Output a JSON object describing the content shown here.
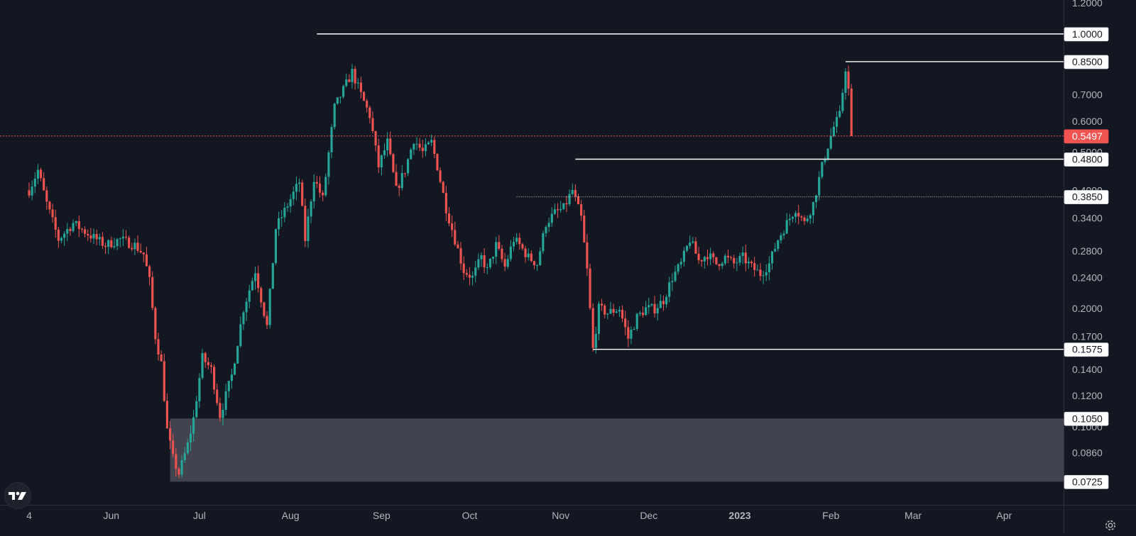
{
  "colors": {
    "background": "#131722",
    "bull": "#26a69a",
    "bear": "#ef5350",
    "level_line": "#ffffff",
    "current_price_line": "#f05350",
    "zone": "#434651",
    "axis_text": "#b2b5be"
  },
  "icons": {
    "logo": "tradingview-logo-icon",
    "settings": "gear-icon"
  },
  "chart_data": {
    "type": "candlestick",
    "title": "",
    "xlabel": "",
    "ylabel": "",
    "y_scale": "log",
    "ylim": [
      0.0645,
      1.21
    ],
    "y_ticks": [
      "1.2000",
      "0.7000",
      "0.6000",
      "0.5000",
      "0.4000",
      "0.3400",
      "0.2800",
      "0.2400",
      "0.2000",
      "0.1700",
      "0.1400",
      "0.1200",
      "0.1000",
      "0.0860"
    ],
    "x_ticks": [
      {
        "label": "4",
        "date": "2022-05-04"
      },
      {
        "label": "Jun",
        "date": "2022-06-01"
      },
      {
        "label": "Jul",
        "date": "2022-07-01"
      },
      {
        "label": "Aug",
        "date": "2022-08-01"
      },
      {
        "label": "Sep",
        "date": "2022-09-01"
      },
      {
        "label": "Oct",
        "date": "2022-10-01"
      },
      {
        "label": "Nov",
        "date": "2022-11-01"
      },
      {
        "label": "Dec",
        "date": "2022-12-01"
      },
      {
        "label": "2023",
        "date": "2023-01-01",
        "bold": true
      },
      {
        "label": "Feb",
        "date": "2023-02-01"
      },
      {
        "label": "Mar",
        "date": "2023-03-01"
      },
      {
        "label": "Apr",
        "date": "2023-04-01"
      }
    ],
    "price_path": [
      [
        "2022-05-04",
        0.4
      ],
      [
        "2022-05-07",
        0.45
      ],
      [
        "2022-05-10",
        0.37
      ],
      [
        "2022-05-14",
        0.3
      ],
      [
        "2022-05-19",
        0.33
      ],
      [
        "2022-05-24",
        0.31
      ],
      [
        "2022-05-30",
        0.29
      ],
      [
        "2022-06-04",
        0.3
      ],
      [
        "2022-06-09",
        0.29
      ],
      [
        "2022-06-12",
        0.275
      ],
      [
        "2022-06-14",
        0.235
      ],
      [
        "2022-06-16",
        0.17
      ],
      [
        "2022-06-18",
        0.145
      ],
      [
        "2022-06-20",
        0.098
      ],
      [
        "2022-06-22",
        0.083
      ],
      [
        "2022-06-24",
        0.076
      ],
      [
        "2022-06-27",
        0.09
      ],
      [
        "2022-06-29",
        0.105
      ],
      [
        "2022-07-02",
        0.15
      ],
      [
        "2022-07-05",
        0.14
      ],
      [
        "2022-07-08",
        0.107
      ],
      [
        "2022-07-12",
        0.135
      ],
      [
        "2022-07-16",
        0.2
      ],
      [
        "2022-07-20",
        0.25
      ],
      [
        "2022-07-24",
        0.18
      ],
      [
        "2022-07-27",
        0.32
      ],
      [
        "2022-08-01",
        0.38
      ],
      [
        "2022-08-04",
        0.42
      ],
      [
        "2022-08-06",
        0.3
      ],
      [
        "2022-08-09",
        0.43
      ],
      [
        "2022-08-12",
        0.38
      ],
      [
        "2022-08-16",
        0.65
      ],
      [
        "2022-08-19",
        0.72
      ],
      [
        "2022-08-22",
        0.8
      ],
      [
        "2022-08-25",
        0.7
      ],
      [
        "2022-08-28",
        0.62
      ],
      [
        "2022-08-31",
        0.46
      ],
      [
        "2022-09-03",
        0.53
      ],
      [
        "2022-09-06",
        0.4
      ],
      [
        "2022-09-09",
        0.45
      ],
      [
        "2022-09-12",
        0.54
      ],
      [
        "2022-09-15",
        0.5
      ],
      [
        "2022-09-18",
        0.53
      ],
      [
        "2022-09-20",
        0.46
      ],
      [
        "2022-09-23",
        0.36
      ],
      [
        "2022-09-26",
        0.3
      ],
      [
        "2022-09-29",
        0.25
      ],
      [
        "2022-10-02",
        0.24
      ],
      [
        "2022-10-05",
        0.27
      ],
      [
        "2022-10-07",
        0.25
      ],
      [
        "2022-10-10",
        0.29
      ],
      [
        "2022-10-13",
        0.255
      ],
      [
        "2022-10-16",
        0.3
      ],
      [
        "2022-10-18",
        0.29
      ],
      [
        "2022-10-21",
        0.27
      ],
      [
        "2022-10-24",
        0.26
      ],
      [
        "2022-10-27",
        0.33
      ],
      [
        "2022-10-30",
        0.35
      ],
      [
        "2022-11-02",
        0.36
      ],
      [
        "2022-11-05",
        0.4
      ],
      [
        "2022-11-08",
        0.34
      ],
      [
        "2022-11-10",
        0.25
      ],
      [
        "2022-11-12",
        0.1575
      ],
      [
        "2022-11-14",
        0.2
      ],
      [
        "2022-11-17",
        0.195
      ],
      [
        "2022-11-21",
        0.2
      ],
      [
        "2022-11-24",
        0.168
      ],
      [
        "2022-11-27",
        0.19
      ],
      [
        "2022-11-30",
        0.2
      ],
      [
        "2022-12-03",
        0.2
      ],
      [
        "2022-12-06",
        0.21
      ],
      [
        "2022-12-09",
        0.24
      ],
      [
        "2022-12-12",
        0.26
      ],
      [
        "2022-12-15",
        0.3
      ],
      [
        "2022-12-18",
        0.265
      ],
      [
        "2022-12-21",
        0.275
      ],
      [
        "2022-12-24",
        0.26
      ],
      [
        "2022-12-27",
        0.27
      ],
      [
        "2022-12-30",
        0.26
      ],
      [
        "2023-01-02",
        0.27
      ],
      [
        "2023-01-05",
        0.255
      ],
      [
        "2023-01-08",
        0.245
      ],
      [
        "2023-01-11",
        0.26
      ],
      [
        "2023-01-14",
        0.3
      ],
      [
        "2023-01-17",
        0.33
      ],
      [
        "2023-01-20",
        0.36
      ],
      [
        "2023-01-23",
        0.33
      ],
      [
        "2023-01-26",
        0.37
      ],
      [
        "2023-01-29",
        0.46
      ],
      [
        "2023-01-31",
        0.52
      ],
      [
        "2023-02-02",
        0.58
      ],
      [
        "2023-02-04",
        0.62
      ],
      [
        "2023-02-06",
        0.82
      ],
      [
        "2023-02-07",
        0.72
      ],
      [
        "2023-02-08",
        0.5497
      ]
    ],
    "current_price": {
      "value": 0.5497,
      "label": "0.5497",
      "date": "2023-02-08"
    },
    "levels": [
      {
        "label": "1.0000",
        "value": 1.0,
        "from": "2022-08-10",
        "style": "solid"
      },
      {
        "label": "0.8500",
        "value": 0.85,
        "from": "2023-02-06",
        "style": "solid"
      },
      {
        "label": "0.4800",
        "value": 0.48,
        "from": "2022-11-06",
        "style": "solid"
      },
      {
        "label": "0.3850",
        "value": 0.385,
        "from": "2022-10-17",
        "style": "dotted"
      },
      {
        "label": "0.1575",
        "value": 0.1575,
        "from": "2022-11-12",
        "style": "solid"
      }
    ],
    "zone": {
      "top": 0.105,
      "bottom": 0.0725,
      "from": "2022-06-21",
      "top_label": "0.1050",
      "bottom_label": "0.0725"
    }
  }
}
